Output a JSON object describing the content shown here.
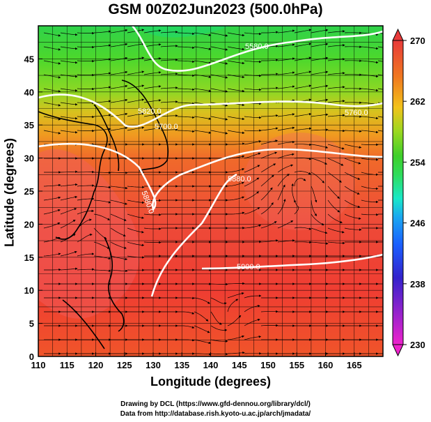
{
  "title": "GSM 00Z02Jun2023 (500.0hPa)",
  "credits": {
    "line1": "Drawing by DCL (https://www.gfd-dennou.org/library/dcl/)",
    "line2": "Data from http://database.rish.kyoto-u.ac.jp/arch/jmadata/"
  },
  "colors": {
    "contour": "#ffffff",
    "coastline": "#000000",
    "streamline": "#000000",
    "colorbar_stops": [
      "#ee22cc",
      "#3322cc",
      "#1a8cff",
      "#19e8c8",
      "#3ecf2a",
      "#9ad820",
      "#f2c21a",
      "#f07820",
      "#e83a3a"
    ]
  },
  "chart_data": {
    "type": "heatmap",
    "title": "GSM 00Z02Jun2023 (500.0hPa)",
    "xlabel": "Longitude (degrees)",
    "ylabel": "Latitude  (degrees)",
    "xlim": [
      110,
      170
    ],
    "ylim": [
      0,
      50
    ],
    "x_ticks": [
      110,
      115,
      120,
      125,
      130,
      135,
      140,
      145,
      150,
      155,
      160,
      165
    ],
    "y_ticks": [
      0,
      5,
      10,
      15,
      20,
      25,
      30,
      35,
      40,
      45
    ],
    "grid": true,
    "colorbar": {
      "min": 230,
      "max": 270,
      "ticks": [
        230,
        238,
        246,
        254,
        262,
        270
      ]
    },
    "contour_labels": [
      "5580.0",
      "5700.0",
      "5760.0",
      "5820.0",
      "5880.0",
      "5880.0",
      "5900.0"
    ],
    "overlay": "streamlines"
  }
}
